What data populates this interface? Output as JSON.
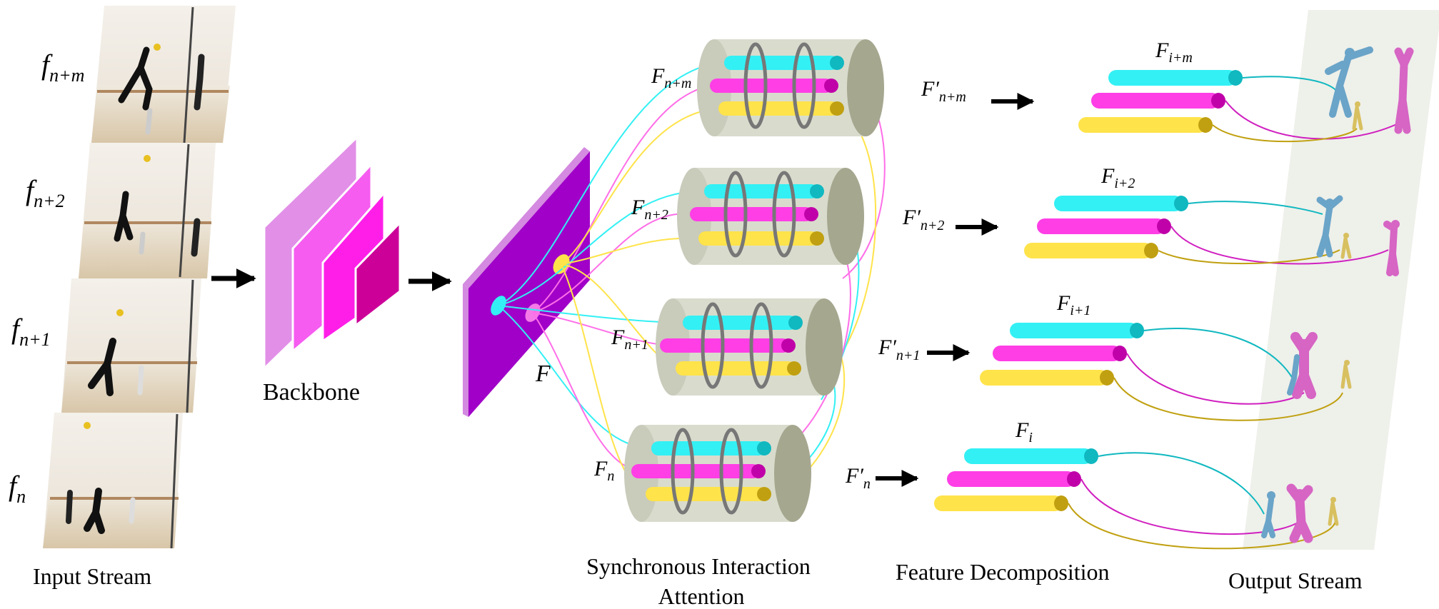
{
  "input_frames": [
    {
      "base": "f",
      "sub": "n+m"
    },
    {
      "base": "f",
      "sub": "n+2"
    },
    {
      "base": "f",
      "sub": "n+1"
    },
    {
      "base": "f",
      "sub": "n"
    }
  ],
  "sections": {
    "input_stream": "Input Stream",
    "backbone": "Backbone",
    "feature_map": "F",
    "sia_line1": "Synchronous Interaction",
    "sia_line2": "Attention",
    "feature_decomposition": "Feature Decomposition",
    "output_stream": "Output Stream"
  },
  "attention_blocks": [
    {
      "base": "F",
      "sub": "n+m"
    },
    {
      "base": "F",
      "sub": "n+2"
    },
    {
      "base": "F",
      "sub": "n+1"
    },
    {
      "base": "F",
      "sub": "n"
    }
  ],
  "refined_features": [
    {
      "base": "F′",
      "sub": "n+m"
    },
    {
      "base": "F′",
      "sub": "n+2"
    },
    {
      "base": "F′",
      "sub": "n+1"
    },
    {
      "base": "F′",
      "sub": "n"
    }
  ],
  "decomposed_features": [
    {
      "base": "F",
      "sub": "i+m"
    },
    {
      "base": "F",
      "sub": "i+2"
    },
    {
      "base": "F",
      "sub": "i+1"
    },
    {
      "base": "F",
      "sub": "i"
    }
  ],
  "colors": {
    "cyan": "#33f0f4",
    "magenta": "#ff3ee6",
    "yellow": "#ffe34a",
    "cylinder": "#d9dccd",
    "cylinder_cap": "#a6a78f",
    "feature_purple": "#a000c8",
    "backbone_1": "#e28fe8",
    "backbone_2": "#f65cf0",
    "backbone_3": "#ff1ee8",
    "backbone_4": "#cc0099",
    "mesh_blue": "#6aa4c8",
    "mesh_pink": "#d665c4",
    "mesh_gold": "#d8c060"
  }
}
